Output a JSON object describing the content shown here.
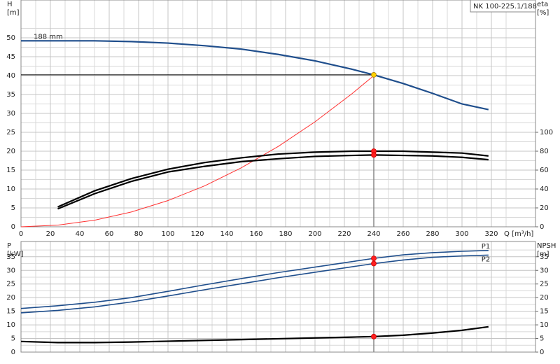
{
  "chart_data": [
    {
      "type": "line",
      "title": "NK 100-225.1/188",
      "y_label": "H",
      "y_unit": "[m]",
      "y2_label": "eta",
      "y2_unit": "[%]",
      "x_label": "Q [m³/h]",
      "x": [
        0,
        25,
        50,
        75,
        100,
        125,
        150,
        175,
        200,
        225,
        240,
        260,
        280,
        300,
        318
      ],
      "xlim": [
        0,
        350
      ],
      "xticks": [
        0,
        20,
        40,
        60,
        80,
        100,
        120,
        140,
        160,
        180,
        200,
        220,
        240,
        260,
        280,
        300,
        320
      ],
      "ylim": [
        0,
        60
      ],
      "yticks": [
        0,
        5,
        10,
        15,
        20,
        25,
        30,
        35,
        40,
        45,
        50
      ],
      "y2lim": [
        0,
        240
      ],
      "y2ticks": [
        0,
        20,
        40,
        60,
        80,
        100
      ],
      "grid": true,
      "series": [
        {
          "name": "188 mm",
          "color": "#1f4e8c",
          "values": [
            49.2,
            49.2,
            49.2,
            49.0,
            48.6,
            47.9,
            47.0,
            45.6,
            43.9,
            41.7,
            40.2,
            37.9,
            35.3,
            32.5,
            31.0
          ]
        },
        {
          "color": "#ff3030",
          "values": [
            0,
            0.43,
            1.74,
            3.91,
            6.94,
            10.85,
            15.63,
            21.27,
            27.78,
            35.16,
            40,
            null,
            null,
            null,
            null
          ]
        },
        {
          "color": "#000000",
          "axis": "y2",
          "values": [
            null,
            21,
            38,
            51,
            61,
            68,
            73,
            77,
            79,
            80,
            80,
            80,
            79,
            78,
            75
          ]
        },
        {
          "color": "#000000",
          "axis": "y2",
          "values": [
            null,
            19,
            35,
            48,
            58,
            64,
            69,
            72,
            74.5,
            75.5,
            76,
            75.5,
            75,
            73.5,
            71
          ]
        }
      ]
    },
    {
      "type": "line",
      "y_label": "P",
      "y_unit": "[kW]",
      "y2_label": "NPSH",
      "y2_unit": "[m]",
      "x": [
        0,
        25,
        50,
        75,
        100,
        125,
        150,
        175,
        200,
        225,
        240,
        260,
        280,
        300,
        318
      ],
      "xlim": [
        0,
        350
      ],
      "ylim": [
        0,
        40.6
      ],
      "yticks": [
        0,
        5,
        10,
        15,
        20,
        25,
        30,
        35
      ],
      "y2lim": [
        0,
        40.6
      ],
      "y2ticks": [
        0,
        5,
        10,
        15,
        20,
        25,
        30,
        35
      ],
      "grid": true,
      "series": [
        {
          "name": "P1",
          "color": "#1f4e8c",
          "values": [
            16.0,
            17.0,
            18.3,
            20.0,
            22.3,
            24.7,
            27.0,
            29.2,
            31.2,
            33.2,
            34.4,
            35.7,
            36.5,
            37.0,
            37.3
          ]
        },
        {
          "name": "P2",
          "color": "#1f4e8c",
          "values": [
            14.4,
            15.3,
            16.6,
            18.4,
            20.6,
            22.9,
            25.1,
            27.3,
            29.3,
            31.3,
            32.5,
            33.8,
            34.8,
            35.3,
            35.6
          ]
        },
        {
          "color": "#000000",
          "axis": "y2",
          "values": [
            3.9,
            3.5,
            3.5,
            3.7,
            4.0,
            4.3,
            4.6,
            4.9,
            5.2,
            5.5,
            5.7,
            6.2,
            7.0,
            8.0,
            9.3
          ]
        }
      ]
    }
  ]
}
